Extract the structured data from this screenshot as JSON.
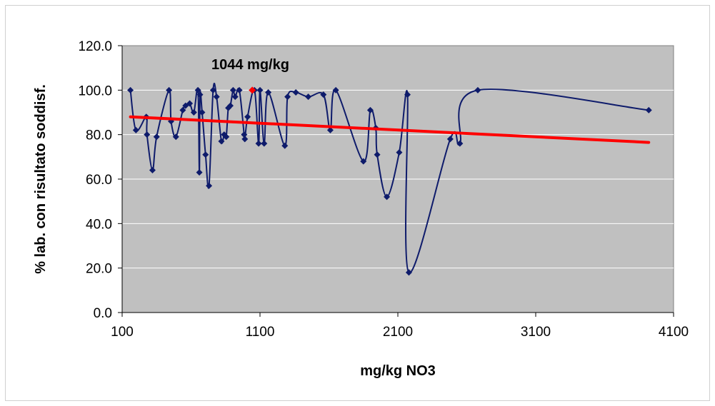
{
  "chart_data": {
    "type": "scatter",
    "title": "",
    "xlabel": "mg/kg NO3",
    "ylabel": "% lab. con risultato soddisf.",
    "xlim": [
      100,
      4100
    ],
    "ylim": [
      0,
      120
    ],
    "x_ticks": [
      "100",
      "1100",
      "2100",
      "3100",
      "4100"
    ],
    "y_ticks": [
      "0.0",
      "20.0",
      "40.0",
      "60.0",
      "80.0",
      "100.0",
      "120.0"
    ],
    "grid": "horizontal",
    "legend": "none",
    "annotation": {
      "text": "1044 mg/kg",
      "x": 1044,
      "y": 100
    },
    "series": [
      {
        "points": [
          [
            160,
            100
          ],
          [
            200,
            82
          ],
          [
            275,
            88
          ],
          [
            280,
            80
          ],
          [
            320,
            64
          ],
          [
            350,
            79
          ],
          [
            440,
            100
          ],
          [
            455,
            86
          ],
          [
            490,
            79
          ],
          [
            540,
            91
          ],
          [
            560,
            93
          ],
          [
            590,
            94
          ],
          [
            620,
            90
          ],
          [
            650,
            100
          ],
          [
            660,
            63
          ],
          [
            665,
            98
          ],
          [
            680,
            90
          ],
          [
            705,
            71
          ],
          [
            730,
            57
          ],
          [
            760,
            100
          ],
          [
            785,
            97
          ],
          [
            820,
            77
          ],
          [
            840,
            80
          ],
          [
            855,
            79
          ],
          [
            870,
            92
          ],
          [
            885,
            93
          ],
          [
            905,
            100
          ],
          [
            920,
            97
          ],
          [
            950,
            100
          ],
          [
            985,
            80
          ],
          [
            990,
            78
          ],
          [
            1010,
            88
          ],
          [
            1060,
            100
          ],
          [
            1090,
            76
          ],
          [
            1100,
            100
          ],
          [
            1130,
            76
          ],
          [
            1160,
            99
          ],
          [
            1280,
            75
          ],
          [
            1300,
            97
          ],
          [
            1360,
            99
          ],
          [
            1450,
            97
          ],
          [
            1560,
            98
          ],
          [
            1610,
            82
          ],
          [
            1650,
            100
          ],
          [
            1850,
            68
          ],
          [
            1900,
            91
          ],
          [
            1940,
            83
          ],
          [
            1950,
            71
          ],
          [
            2020,
            52
          ],
          [
            2110,
            72
          ],
          [
            2170,
            98
          ],
          [
            2180,
            18
          ],
          [
            2480,
            78
          ],
          [
            2550,
            76
          ],
          [
            2680,
            100
          ],
          [
            3920,
            91
          ]
        ]
      },
      {
        "type": "line",
        "points": [
          [
            160,
            88
          ],
          [
            3920,
            76.5
          ]
        ]
      }
    ],
    "highlight": {
      "x": 1044,
      "y": 100
    },
    "colors": {
      "plot_bg": "#c0c0c0",
      "series": "#0e1b6b",
      "trend": "#ff0000",
      "highlight": "#ff0000",
      "grid": "#ffffff"
    }
  }
}
